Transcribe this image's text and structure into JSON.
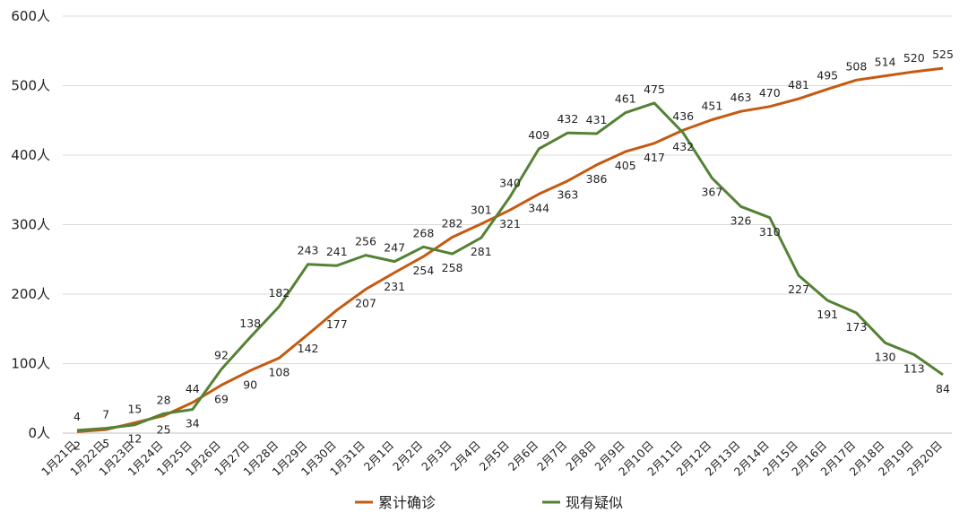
{
  "chart_data": {
    "type": "line",
    "categories": [
      "1月21日",
      "1月22日",
      "1月23日",
      "1月24日",
      "1月25日",
      "1月26日",
      "1月27日",
      "1月28日",
      "1月29日",
      "1月30日",
      "1月31日",
      "2月1日",
      "2月2日",
      "2月3日",
      "2月4日",
      "2月5日",
      "2月6日",
      "2月7日",
      "2月8日",
      "2月9日",
      "2月10日",
      "2月11日",
      "2月12日",
      "2月13日",
      "2月14日",
      "2月15日",
      "2月16日",
      "2月17日",
      "2月18日",
      "2月19日",
      "2月20日"
    ],
    "series": [
      {
        "name": "累计确诊",
        "color": "#c55a11",
        "values": [
          2,
          5,
          15,
          25,
          44,
          69,
          90,
          108,
          142,
          177,
          207,
          231,
          254,
          282,
          301,
          321,
          344,
          363,
          386,
          405,
          417,
          436,
          451,
          463,
          470,
          481,
          495,
          508,
          514,
          520,
          525
        ],
        "labels": [
          "2",
          "5",
          "15",
          "25",
          "44",
          "69",
          "90",
          "108",
          "142",
          "177",
          "207",
          "231",
          "254",
          "282",
          "301",
          "321",
          "344",
          "363",
          "386",
          "405",
          "417",
          "436",
          "451",
          "463",
          "470",
          "481",
          "495",
          "508",
          "514",
          "520",
          "525"
        ]
      },
      {
        "name": "现有疑似",
        "color": "#548235",
        "values": [
          4,
          7,
          12,
          28,
          34,
          92,
          138,
          182,
          243,
          241,
          256,
          247,
          268,
          258,
          281,
          340,
          409,
          432,
          431,
          461,
          475,
          432,
          367,
          326,
          310,
          227,
          191,
          173,
          130,
          113,
          84
        ],
        "labels": [
          "4",
          "7",
          "12",
          "28",
          "34",
          "92",
          "138",
          "182",
          "243",
          "241",
          "256",
          "247",
          "268",
          "258",
          "281",
          "340",
          "409",
          "432",
          "431",
          "461",
          "475",
          "432",
          "367",
          "326",
          "310",
          "227",
          "191",
          "173",
          "130",
          "113",
          "84"
        ]
      }
    ],
    "yticks": [
      "0人",
      "100人",
      "200人",
      "300人",
      "400人",
      "500人",
      "600人"
    ],
    "ylim": [
      0,
      600
    ],
    "grid": true,
    "legend": "bottom"
  }
}
